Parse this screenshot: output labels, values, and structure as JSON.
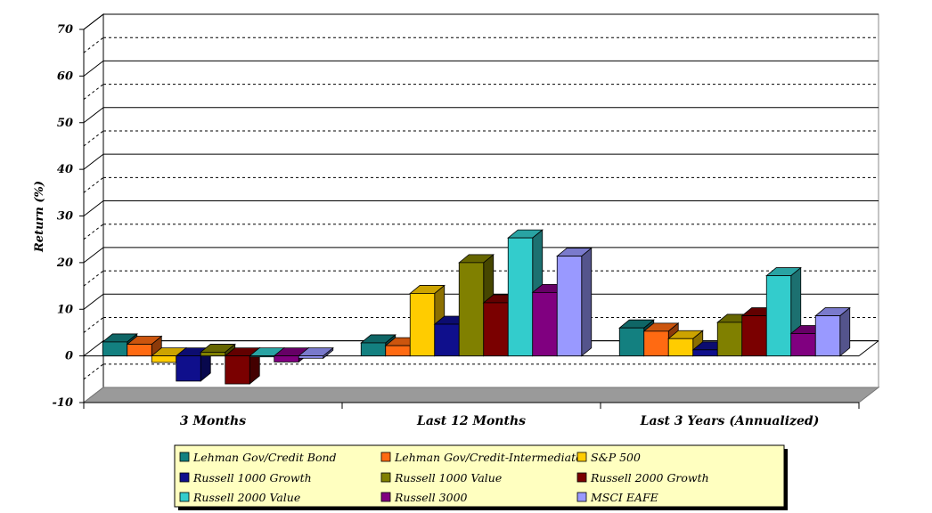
{
  "chart_data": {
    "type": "bar",
    "title": "",
    "xlabel": "",
    "ylabel": "Return (%)",
    "ylim": [
      -10,
      70
    ],
    "yticks": [
      "70",
      "60",
      "50",
      "40",
      "30",
      "20",
      "10",
      "0",
      "-10"
    ],
    "grid": true,
    "legend_position": "bottom",
    "categories": [
      "3 Months",
      "Last 12 Months",
      "Last 3 Years (Annualized)"
    ],
    "series": [
      {
        "name": "Lehman Gov/Credit Bond",
        "color": "#138080",
        "values": [
          3.0,
          2.8,
          6.0
        ]
      },
      {
        "name": "Lehman Gov/Credit-Intermediate",
        "color": "#ff6a12",
        "values": [
          2.5,
          2.2,
          5.3
        ]
      },
      {
        "name": "S&P 500",
        "color": "#ffcc00",
        "values": [
          -1.4,
          13.4,
          3.7
        ]
      },
      {
        "name": "Russell 1000 Growth",
        "color": "#0f0f8c",
        "values": [
          -5.4,
          6.8,
          1.3
        ]
      },
      {
        "name": "Russell 1000 Value",
        "color": "#808000",
        "values": [
          0.8,
          20.0,
          7.2
        ]
      },
      {
        "name": "Russell 2000 Growth",
        "color": "#7a0000",
        "values": [
          -6.0,
          11.4,
          8.6
        ]
      },
      {
        "name": "Russell 2000 Value",
        "color": "#33cccc",
        "values": [
          -0.2,
          25.3,
          17.2
        ]
      },
      {
        "name": "Russell 3000",
        "color": "#800080",
        "values": [
          -1.3,
          13.6,
          4.8
        ]
      },
      {
        "name": "MSCI EAFE",
        "color": "#9999ff",
        "values": [
          -0.5,
          21.4,
          8.6
        ]
      }
    ]
  }
}
